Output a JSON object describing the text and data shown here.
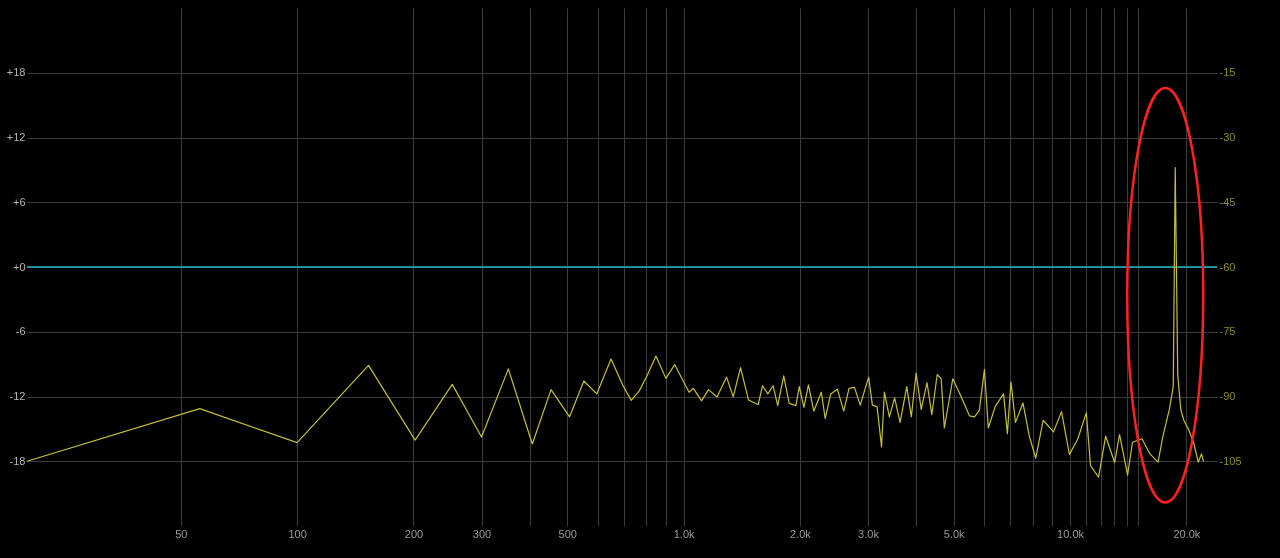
{
  "chart_data": {
    "type": "line",
    "log": "x",
    "grid": true,
    "xlim": [
      20,
      24000
    ],
    "xticks": [
      50,
      100,
      200,
      300,
      {
        "value": 400,
        "label": null
      },
      500,
      {
        "value": 600,
        "label": null
      },
      {
        "value": 700,
        "label": null
      },
      {
        "value": 800,
        "label": null
      },
      {
        "value": 900,
        "label": null
      },
      {
        "value": 1000,
        "label": "1.0k"
      },
      {
        "value": 2000,
        "label": "2.0k"
      },
      {
        "value": 3000,
        "label": "3.0k"
      },
      {
        "value": 4000,
        "label": null
      },
      {
        "value": 5000,
        "label": "5.0k"
      },
      {
        "value": 6000,
        "label": null
      },
      {
        "value": 7000,
        "label": null
      },
      {
        "value": 8000,
        "label": null
      },
      {
        "value": 9000,
        "label": null
      },
      {
        "value": 10000,
        "label": "10.0k"
      },
      {
        "value": 11000,
        "label": null
      },
      {
        "value": 12000,
        "label": null
      },
      {
        "value": 13000,
        "label": null
      },
      {
        "value": 14000,
        "label": null
      },
      {
        "value": 15000,
        "label": null
      },
      {
        "value": 20000,
        "label": "20.0k"
      }
    ],
    "ylim": [
      -24,
      24
    ],
    "yticks": [
      {
        "value": 18,
        "label": "+18"
      },
      {
        "value": 12,
        "label": "+12"
      },
      {
        "value": 6,
        "label": "+6"
      },
      {
        "value": 0,
        "label": "+0"
      },
      -6,
      -12,
      -18
    ],
    "y2lim": [
      -120,
      0
    ],
    "y2ticks": [
      -15,
      -30,
      -45,
      -60,
      -75,
      -90,
      -105
    ],
    "ref_lines": [
      {
        "axis": "y",
        "value": 0,
        "color": "#1fb8c4"
      }
    ],
    "series": [
      {
        "color": "#c4be3c",
        "axis": "y2",
        "x": [
          20,
          56,
          100,
          153,
          202,
          252,
          300,
          352,
          406,
          454,
          507,
          552,
          596,
          649,
          698,
          732,
          768,
          806,
          848,
          900,
          948,
          1033,
          1060,
          1113,
          1160,
          1220,
          1292,
          1344,
          1404,
          1472,
          1560,
          1600,
          1652,
          1704,
          1752,
          1816,
          1876,
          1952,
          1992,
          2048,
          2104,
          2172,
          2272,
          2325,
          2403,
          2500,
          2596,
          2680,
          2768,
          2864,
          3012,
          3080,
          3168,
          3252,
          3308,
          3408,
          3516,
          3632,
          3780,
          3884,
          3996,
          4120,
          4264,
          4388,
          4532,
          4640,
          4728,
          4972,
          5188,
          5496,
          5660,
          5824,
          6004,
          6144,
          6404,
          6728,
          6884,
          7032,
          7224,
          7552,
          7844,
          8152,
          8520,
          9060,
          9504,
          9964,
          10464,
          11016,
          11296,
          11852,
          12364,
          13040,
          13428,
          14088,
          14504,
          15352,
          16096,
          16892,
          17392,
          18068,
          18492,
          18712,
          18996,
          19340,
          19692,
          20272,
          20868,
          21464,
          21880,
          22144
        ],
        "values": [
          -105,
          -92.8,
          -100.7,
          -82.8,
          -100.1,
          -87.2,
          -99.4,
          -83.6,
          -101,
          -88.4,
          -94.7,
          -86.4,
          -89.4,
          -81.3,
          -87.6,
          -90.9,
          -88.7,
          -85,
          -80.6,
          -85.8,
          -82.6,
          -89,
          -88.1,
          -91,
          -88.4,
          -90.1,
          -85.5,
          -90.1,
          -83.3,
          -90.8,
          -91.9,
          -87.5,
          -89.4,
          -87.5,
          -92.1,
          -85.2,
          -91.6,
          -92.1,
          -87.7,
          -92.5,
          -87.3,
          -93.4,
          -89,
          -95.1,
          -89.4,
          -88.3,
          -93.4,
          -88.1,
          -87.9,
          -92,
          -85.5,
          -92,
          -92.4,
          -101.7,
          -89,
          -94.7,
          -90.3,
          -96,
          -87.7,
          -94.7,
          -84.6,
          -93,
          -86.8,
          -94.2,
          -84.9,
          -85.9,
          -97.3,
          -85.9,
          -89.4,
          -94.5,
          -94.7,
          -93.2,
          -83.7,
          -97.3,
          -92.3,
          -89.4,
          -98.6,
          -86.6,
          -96,
          -91.5,
          -99.2,
          -104.3,
          -95.5,
          -98.2,
          -93.5,
          -103.4,
          -99.9,
          -93.8,
          -106,
          -108.7,
          -99.2,
          -105.3,
          -98.8,
          -108.2,
          -100.6,
          -99.8,
          -103.3,
          -105.2,
          -99.2,
          -93,
          -87.7,
          -37,
          -85,
          -93,
          -95.5,
          -97.7,
          -100.6,
          -105.2,
          -103.3,
          -105
        ]
      }
    ]
  }
}
